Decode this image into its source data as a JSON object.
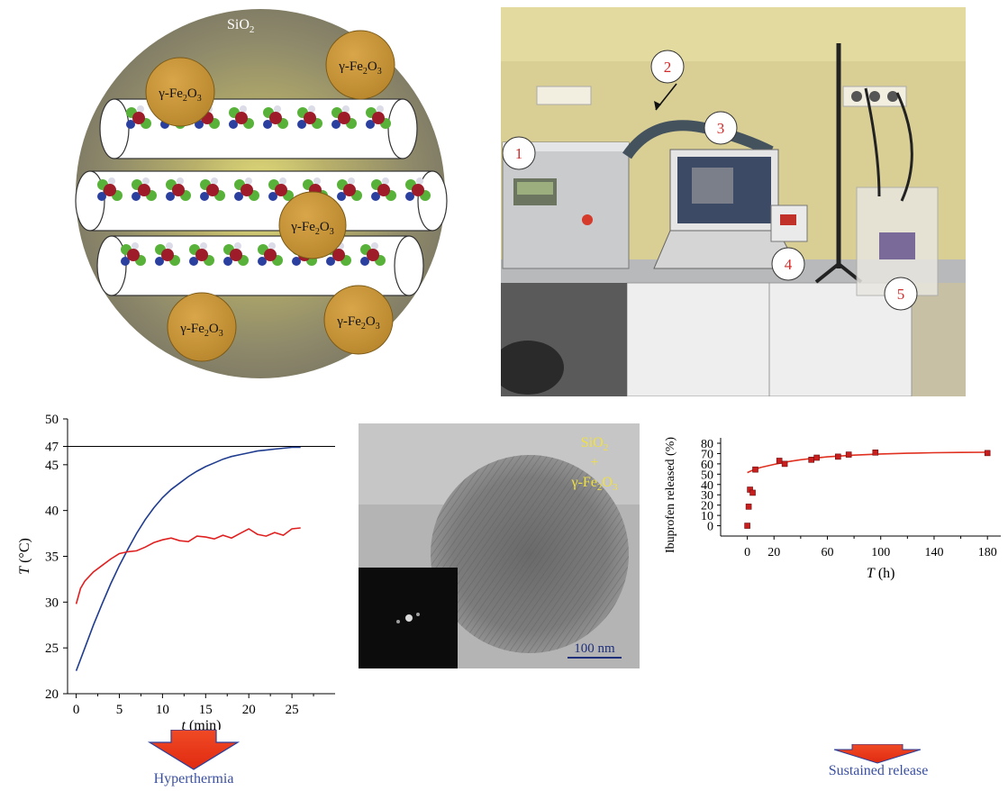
{
  "schematic": {
    "matrix_label": "SiO",
    "matrix_sub": "2",
    "particles": [
      {
        "prefix": "γ-Fe",
        "sub1": "2",
        "mid": "O",
        "sub2": "3"
      },
      {
        "prefix": "γ-Fe",
        "sub1": "2",
        "mid": "O",
        "sub2": "3"
      },
      {
        "prefix": "γ-Fe",
        "sub1": "2",
        "mid": "O",
        "sub2": "3"
      },
      {
        "prefix": "γ-Fe",
        "sub1": "2",
        "mid": "O",
        "sub2": "3"
      },
      {
        "prefix": "γ-Fe",
        "sub1": "2",
        "mid": "O",
        "sub2": "3"
      }
    ]
  },
  "setup_photo": {
    "markers": [
      "1",
      "2",
      "3",
      "4",
      "5"
    ]
  },
  "tem_image": {
    "label_line1": "SiO",
    "label_line1_sub": "2",
    "label_plus": "+",
    "label_line3": "γ-Fe",
    "label_line3_sub1": "2",
    "label_line3_mid": "O",
    "label_line3_sub2": "3",
    "scale_bar": "100 nm"
  },
  "arrows": {
    "left_caption": "Hyperthermia",
    "right_caption": "Sustained release"
  },
  "chart_data": [
    {
      "type": "line",
      "xlabel_var": "t",
      "xlabel_unit": " (min)",
      "ylabel_var": "T",
      "ylabel_unit": " (°C)",
      "xlim": [
        -1,
        30
      ],
      "ylim": [
        20,
        50
      ],
      "xticks": [
        0,
        5,
        10,
        15,
        20,
        25
      ],
      "yticks": [
        20,
        25,
        30,
        35,
        40,
        45,
        47,
        50
      ],
      "reference_line_y": 47,
      "series": [
        {
          "color": "#1f3c8f",
          "x": [
            0,
            1,
            2,
            3,
            4,
            5,
            6,
            7,
            8,
            9,
            10,
            11,
            12,
            13,
            14,
            15,
            16,
            17,
            18,
            19,
            20,
            21,
            22,
            23,
            24,
            25,
            26
          ],
          "y": [
            22.5,
            25.0,
            27.5,
            29.8,
            32.0,
            34.0,
            35.8,
            37.5,
            39.0,
            40.3,
            41.4,
            42.3,
            43.0,
            43.7,
            44.3,
            44.8,
            45.2,
            45.6,
            45.9,
            46.1,
            46.3,
            46.5,
            46.6,
            46.7,
            46.8,
            46.9,
            46.9
          ]
        },
        {
          "color": "#e02020",
          "x": [
            0,
            0.5,
            1,
            2,
            3,
            4,
            5,
            6,
            7,
            8,
            9,
            10,
            11,
            12,
            13,
            14,
            15,
            16,
            17,
            18,
            19,
            20,
            21,
            22,
            23,
            24,
            25,
            26
          ],
          "y": [
            29.8,
            31.5,
            32.3,
            33.3,
            34.0,
            34.7,
            35.3,
            35.5,
            35.6,
            36.0,
            36.5,
            36.8,
            37.0,
            36.7,
            36.6,
            37.2,
            37.1,
            36.9,
            37.3,
            37.0,
            37.5,
            38.0,
            37.4,
            37.2,
            37.6,
            37.3,
            38.0,
            38.1
          ]
        }
      ]
    },
    {
      "type": "scatter",
      "xlabel_var": "T",
      "xlabel_unit": " (h)",
      "ylabel": "Ibuprofen released (%)",
      "xlim": [
        -20,
        190
      ],
      "ylim": [
        -10,
        80
      ],
      "xticks": [
        0,
        20,
        60,
        100,
        140,
        180
      ],
      "yticks": [
        0,
        10,
        20,
        30,
        40,
        50,
        60,
        70,
        80
      ],
      "series": [
        {
          "color": "#c81e1e",
          "x": [
            0,
            1,
            2,
            4,
            6,
            24,
            28,
            48,
            52,
            68,
            76,
            96,
            180
          ],
          "y": [
            0,
            18.5,
            35,
            32,
            54.5,
            63,
            60,
            64,
            66,
            67,
            69,
            71,
            70.5
          ]
        }
      ],
      "fit_curve": {
        "color": "#e03020",
        "x": [
          0,
          5,
          10,
          20,
          30,
          40,
          50,
          60,
          80,
          100,
          120,
          140,
          160,
          180
        ],
        "y": [
          51.5,
          54.5,
          56.5,
          59.5,
          62,
          64,
          65.5,
          66.8,
          68.5,
          69.6,
          70.3,
          70.8,
          71.1,
          71.3
        ]
      }
    }
  ]
}
